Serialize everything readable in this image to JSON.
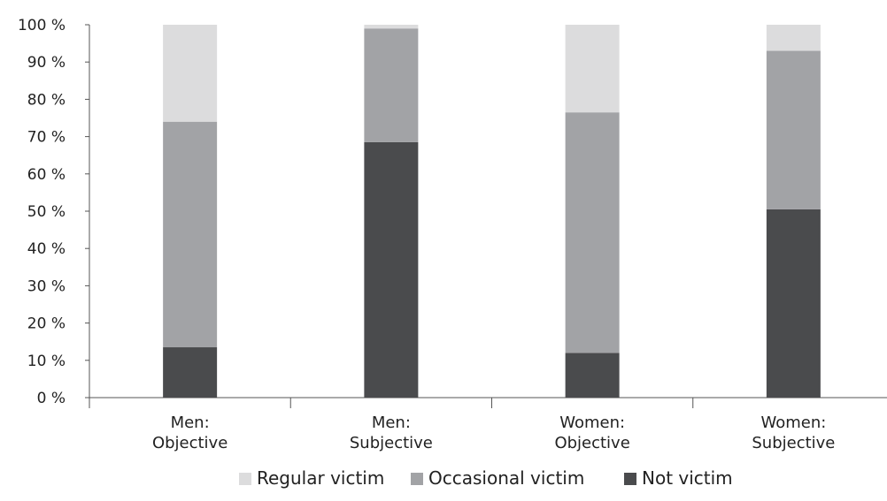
{
  "chart_data": {
    "type": "bar",
    "stacked": true,
    "categories": [
      [
        "Men:",
        "Objective"
      ],
      [
        "Men:",
        "Subjective"
      ],
      [
        "Women:",
        "Objective"
      ],
      [
        "Women:",
        "Subjective"
      ]
    ],
    "series": [
      {
        "name": "Not victim",
        "color": "#4a4b4d",
        "values": [
          13.5,
          68.5,
          12.0,
          50.5
        ]
      },
      {
        "name": "Occasional victim",
        "color": "#a2a3a6",
        "values": [
          60.5,
          30.5,
          64.5,
          42.5
        ]
      },
      {
        "name": "Regular victim",
        "color": "#dcdcdd",
        "values": [
          26.0,
          1.0,
          23.5,
          7.0
        ]
      }
    ],
    "legend_order": [
      "Regular victim",
      "Occasional victim",
      "Not victim"
    ],
    "yticks": [
      "0 %",
      "10 %",
      "20 %",
      "30 %",
      "40 %",
      "50 %",
      "60 %",
      "70 %",
      "80 %",
      "90 %",
      "100 %"
    ],
    "ylim": [
      0,
      100
    ],
    "title": "",
    "xlabel": "",
    "ylabel": "",
    "legend_position": "bottom",
    "grid": false
  }
}
